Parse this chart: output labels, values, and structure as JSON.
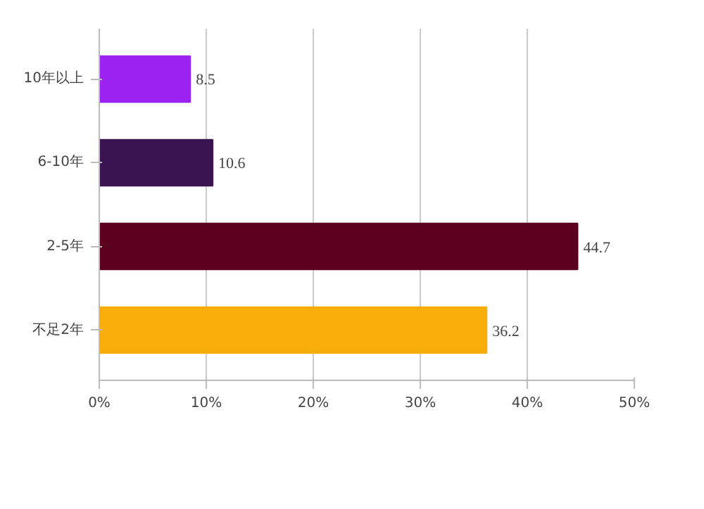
{
  "chart_data": {
    "type": "bar",
    "orientation": "horizontal",
    "categories": [
      "10年以上",
      "6-10年",
      "2-5年",
      "不足2年"
    ],
    "values": [
      8.5,
      10.6,
      44.7,
      36.2
    ],
    "colors": [
      "#9b22f0",
      "#3a1450",
      "#5c0020",
      "#f8ad0a"
    ],
    "xlim": [
      0,
      50
    ],
    "xticks": [
      {
        "value": 0,
        "label": "0%"
      },
      {
        "value": 10,
        "label": "10%"
      },
      {
        "value": 20,
        "label": "20%"
      },
      {
        "value": 30,
        "label": "30%"
      },
      {
        "value": 40,
        "label": "40%"
      },
      {
        "value": 50,
        "label": "50%"
      }
    ],
    "grid": "x",
    "data_labels": true
  }
}
